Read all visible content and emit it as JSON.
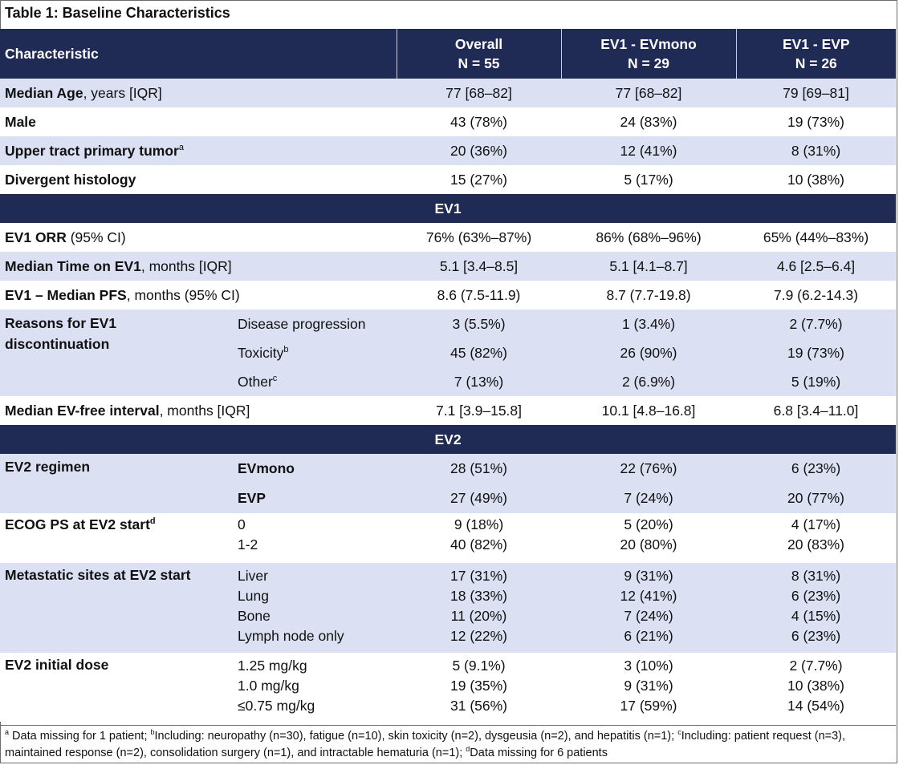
{
  "title": "Table 1: Baseline Characteristics",
  "header": {
    "characteristic": "Characteristic",
    "overall": "Overall",
    "overall_n": "N = 55",
    "evmono": "EV1 - EVmono",
    "evmono_n": "N = 29",
    "evp": "EV1 - EVP",
    "evp_n": "N = 26"
  },
  "rows": {
    "age": {
      "label_bold": "Median Age",
      "label_rest": ", years [IQR]",
      "overall": "77 [68–82]",
      "evmono": "77 [68–82]",
      "evp": "79 [69–81]"
    },
    "male": {
      "label_bold": "Male",
      "overall": "43 (78%)",
      "evmono": "24 (83%)",
      "evp": "19 (73%)"
    },
    "upper": {
      "label_bold": "Upper tract primary tumor",
      "sup": "a",
      "overall": "20 (36%)",
      "evmono": "12 (41%)",
      "evp": "8 (31%)"
    },
    "divergent": {
      "label_bold": "Divergent histology",
      "overall": "15 (27%)",
      "evmono": "5 (17%)",
      "evp": "10 (38%)"
    }
  },
  "sections": {
    "ev1": "EV1",
    "ev2": "EV2"
  },
  "ev1": {
    "orr": {
      "label_bold": "EV1 ORR",
      "label_rest": " (95% CI)",
      "overall": "76% (63%–87%)",
      "evmono": "86% (68%–96%)",
      "evp": "65% (44%–83%)"
    },
    "time": {
      "label_bold": "Median Time on EV1",
      "label_rest": ", months [IQR]",
      "overall": "5.1 [3.4–8.5]",
      "evmono": "5.1 [4.1–8.7]",
      "evp": "4.6 [2.5–6.4]"
    },
    "pfs": {
      "label_bold": "EV1 – Median PFS",
      "label_rest": ", months (95% CI)",
      "overall": "8.6 (7.5-11.9)",
      "evmono": "8.7 (7.7-19.8)",
      "evp": "7.9 (6.2-14.3)"
    },
    "reasons": {
      "label_line1": "Reasons for EV1",
      "label_line2": "discontinuation",
      "progression": {
        "label": "Disease progression",
        "overall": "3 (5.5%)",
        "evmono": "1 (3.4%)",
        "evp": "2 (7.7%)"
      },
      "toxicity": {
        "label": "Toxicity",
        "sup": "b",
        "overall": "45 (82%)",
        "evmono": "26 (90%)",
        "evp": "19 (73%)"
      },
      "other": {
        "label": "Other",
        "sup": "c",
        "overall": "7 (13%)",
        "evmono": "2 (6.9%)",
        "evp": "5 (19%)"
      }
    },
    "interval": {
      "label_bold": "Median EV-free interval",
      "label_rest": ", months [IQR]",
      "overall": "7.1 [3.9–15.8]",
      "evmono": "10.1 [4.8–16.8]",
      "evp": "6.8 [3.4–11.0]"
    }
  },
  "ev2": {
    "regimen": {
      "label": "EV2 regimen",
      "evmono": {
        "label": "EVmono",
        "overall": "28 (51%)",
        "evmono": "22 (76%)",
        "evp": "6 (23%)"
      },
      "evp": {
        "label": "EVP",
        "overall": "27 (49%)",
        "evmono": "7 (24%)",
        "evp": "20 (77%)"
      }
    },
    "ecog": {
      "label": "ECOG PS at EV2 start",
      "sup": "d",
      "items": [
        {
          "label": "0",
          "overall": "9 (18%)",
          "evmono": "5 (20%)",
          "evp": "4 (17%)"
        },
        {
          "label": "1-2",
          "overall": "40 (82%)",
          "evmono": "20 (80%)",
          "evp": "20 (83%)"
        }
      ]
    },
    "metastatic": {
      "label": "Metastatic sites at EV2 start",
      "items": [
        {
          "label": "Liver",
          "overall": "17 (31%)",
          "evmono": "9 (31%)",
          "evp": "8 (31%)"
        },
        {
          "label": "Lung",
          "overall": "18 (33%)",
          "evmono": "12 (41%)",
          "evp": "6 (23%)"
        },
        {
          "label": "Bone",
          "overall": "11 (20%)",
          "evmono": "7 (24%)",
          "evp": "4 (15%)"
        },
        {
          "label": "Lymph node only",
          "overall": "12 (22%)",
          "evmono": "6 (21%)",
          "evp": "6 (23%)"
        }
      ]
    },
    "dose": {
      "label": "EV2 initial dose",
      "items": [
        {
          "label": "1.25 mg/kg",
          "overall": "5 (9.1%)",
          "evmono": "3 (10%)",
          "evp": "2 (7.7%)"
        },
        {
          "label": "1.0 mg/kg",
          "overall": "19 (35%)",
          "evmono": "9 (31%)",
          "evp": "10 (38%)"
        },
        {
          "label": "≤0.75 mg/kg",
          "overall": "31 (56%)",
          "evmono": "17 (59%)",
          "evp": "14 (54%)"
        }
      ]
    }
  },
  "footnote": {
    "a_mark": "a",
    "a_text": " Data missing for 1 patient; ",
    "b_mark": "b",
    "b_text": "Including: neuropathy (n=30), fatigue (n=10), skin toxicity (n=2), dysgeusia (n=2), and hepatitis (n=1); ",
    "c_mark": "c",
    "c_text": "Including: patient request (n=3), maintained response (n=2), consolidation surgery (n=1), and intractable hematuria (n=1); ",
    "d_mark": "d",
    "d_text": "Data missing for 6 patients"
  }
}
